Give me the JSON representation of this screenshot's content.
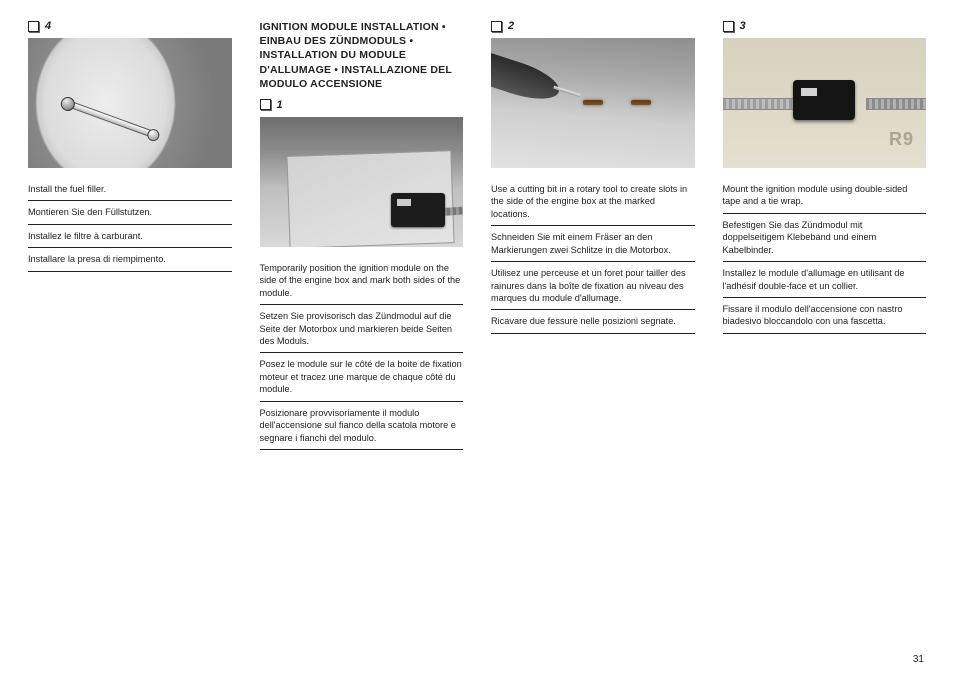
{
  "pageNumber": "31",
  "col1": {
    "step": "4",
    "instructions": [
      "Install the fuel filler.",
      "Montieren Sie den Füllstutzen.",
      "Installez le filtre à carburant.",
      "Installare la presa di riempimento."
    ]
  },
  "col2": {
    "heading": "IGNITION MODULE INSTALLATION • EINBAU DES ZÜNDMODULS • INSTALLATION DU MODULE D'ALLUMAGE • INSTALLAZIONE DEL MODULO ACCENSIONE",
    "step": "1",
    "instructions": [
      "Temporarily position the ignition module on the side of the engine box and mark both sides of the module.",
      "Setzen Sie provisorisch das Zündmodul auf die Seite der Motorbox und markieren beide Seiten des Moduls.",
      "Posez le module sur le côté de la boite de fixation moteur et tracez une marque de chaque côté du module.",
      "Posizionare provvisoriamente il modulo dell'accensione sul fianco della scatola motore e segnare i fianchi del modulo."
    ]
  },
  "col3": {
    "step": "2",
    "instructions": [
      "Use a cutting bit in a rotary tool to create slots in the side of the engine box at the marked locations.",
      "Schneiden Sie mit einem Fräser an den Markierungen zwei Schlitze in die Motorbox.",
      "Utilisez une perceuse et un foret pour tailler des rainures dans la boîte de fixation au niveau des marques du module d'allumage.",
      "Ricavare due fessure nelle posizioni segnate."
    ]
  },
  "col4": {
    "step": "3",
    "instructions": [
      "Mount the ignition module using double-sided tape and a tie wrap.",
      "Befestigen Sie das Zündmodul mit doppelseitigem Klebeband und einem Kabelbinder.",
      "Installez le module d'allumage en utilisant de l'adhésif double-face et un collier.",
      "Fissare il modulo dell'accensione con nastro biadesivo bloccandolo con una fascetta."
    ]
  }
}
